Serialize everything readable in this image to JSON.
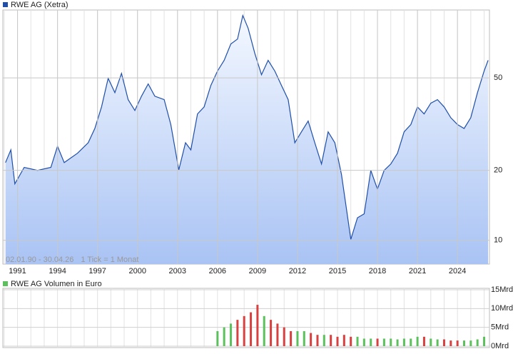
{
  "chart_data": [
    {
      "type": "line",
      "annotations": [
        "02.01.90 - 30.04.26",
        "1 Tick = 1 Monat"
      ],
      "log_scale": true,
      "grid": true,
      "xlim": [
        1989.9,
        2026.4
      ],
      "xticks": [
        1991,
        1994,
        1997,
        2000,
        2003,
        2006,
        2009,
        2012,
        2015,
        2018,
        2021,
        2024
      ],
      "ylim": [
        7.9,
        98
      ],
      "yticks": [
        10,
        20,
        50
      ],
      "series": [
        {
          "name": "RWE AG (Xetra)",
          "color": "#1f4fa8",
          "x": [
            1990.1,
            1990.5,
            1990.8,
            1991.5,
            1992.5,
            1993.5,
            1994.0,
            1994.5,
            1995.5,
            1996.3,
            1996.8,
            1997.3,
            1997.8,
            1998.3,
            1998.8,
            1999.3,
            1999.8,
            2000.3,
            2000.8,
            2001.3,
            2002.0,
            2002.5,
            2003.1,
            2003.6,
            2004.0,
            2004.5,
            2005.0,
            2005.5,
            2006.0,
            2006.5,
            2007.0,
            2007.5,
            2007.9,
            2008.3,
            2008.8,
            2009.3,
            2009.8,
            2010.3,
            2010.8,
            2011.3,
            2011.8,
            2012.3,
            2012.8,
            2013.3,
            2013.8,
            2014.3,
            2014.8,
            2015.3,
            2016.0,
            2016.5,
            2017.0,
            2017.5,
            2018.0,
            2018.5,
            2019.0,
            2019.5,
            2020.0,
            2020.5,
            2021.0,
            2021.5,
            2022.0,
            2022.5,
            2023.0,
            2023.5,
            2024.0,
            2024.5,
            2025.0,
            2025.5,
            2026.0,
            2026.3
          ],
          "values": [
            21.6,
            24.5,
            17.5,
            20.6,
            20,
            20.6,
            25.4,
            21.6,
            23.7,
            26.3,
            30.3,
            37.5,
            49.8,
            43.2,
            52.3,
            40.3,
            36.2,
            41.7,
            47.1,
            41.7,
            40.3,
            31.5,
            20.1,
            26.3,
            24.5,
            35,
            37.5,
            46.4,
            53.5,
            59.5,
            70,
            73.5,
            92.8,
            81.7,
            63.8,
            51.6,
            59.5,
            53.5,
            46.4,
            40.3,
            26.3,
            29.3,
            32.6,
            26.3,
            21.3,
            29.3,
            26.3,
            19.2,
            10.1,
            12.5,
            13,
            20,
            16.6,
            20,
            21.3,
            23.7,
            29.3,
            31.5,
            37.5,
            35,
            38.9,
            40.3,
            37.5,
            33.7,
            31.5,
            30.3,
            33.7,
            43.2,
            53.5,
            59.5
          ]
        }
      ]
    },
    {
      "type": "bar",
      "xlim": [
        1989.9,
        2026.4
      ],
      "ylim": [
        0,
        15
      ],
      "yticks": [
        {
          "value": 0,
          "label": "0Mrd"
        },
        {
          "value": 5,
          "label": "5Mrd"
        },
        {
          "value": 10,
          "label": "10Mrd"
        },
        {
          "value": 15,
          "label": "15Mrd"
        }
      ],
      "series": [
        {
          "name": "RWE AG Volumen in Euro",
          "color": "#5cc15c",
          "x": [
            2006.0,
            2006.5,
            2007.0,
            2007.5,
            2008.0,
            2008.5,
            2009.0,
            2009.5,
            2010.0,
            2010.5,
            2011.0,
            2011.5,
            2012.0,
            2012.5,
            2013.0,
            2013.5,
            2014.0,
            2014.5,
            2015.0,
            2015.5,
            2016.0,
            2016.5,
            2017.0,
            2017.5,
            2018.0,
            2018.5,
            2019.0,
            2019.5,
            2020.0,
            2020.5,
            2021.0,
            2021.5,
            2022.0,
            2022.5,
            2023.0,
            2023.5,
            2024.0,
            2024.5,
            2025.0,
            2025.5,
            2026.0
          ],
          "values": [
            4,
            5,
            6,
            7,
            8,
            9,
            11,
            8,
            7,
            6,
            5,
            4,
            4,
            4,
            3.5,
            3,
            3,
            3,
            2.5,
            3,
            2.5,
            2.5,
            2,
            2,
            2,
            2,
            2,
            1.8,
            2,
            2,
            2.5,
            2.5,
            2,
            1.8,
            1.8,
            1.5,
            1.5,
            1.5,
            1.5,
            1.8,
            2.5
          ],
          "colors": [
            "#5cc15c",
            "#5cc15c",
            "#5cc15c",
            "#d94040",
            "#d94040",
            "#d94040",
            "#d94040",
            "#5cc15c",
            "#d94040",
            "#d94040",
            "#d94040",
            "#d94040",
            "#5cc15c",
            "#5cc15c",
            "#d94040",
            "#d94040",
            "#5cc15c",
            "#d94040",
            "#d94040",
            "#d94040",
            "#d94040",
            "#5cc15c",
            "#5cc15c",
            "#5cc15c",
            "#d94040",
            "#5cc15c",
            "#5cc15c",
            "#5cc15c",
            "#5cc15c",
            "#5cc15c",
            "#5cc15c",
            "#d94040",
            "#5cc15c",
            "#5cc15c",
            "#d94040",
            "#d94040",
            "#d94040",
            "#5cc15c",
            "#5cc15c",
            "#5cc15c",
            "#5cc15c"
          ]
        }
      ]
    }
  ]
}
